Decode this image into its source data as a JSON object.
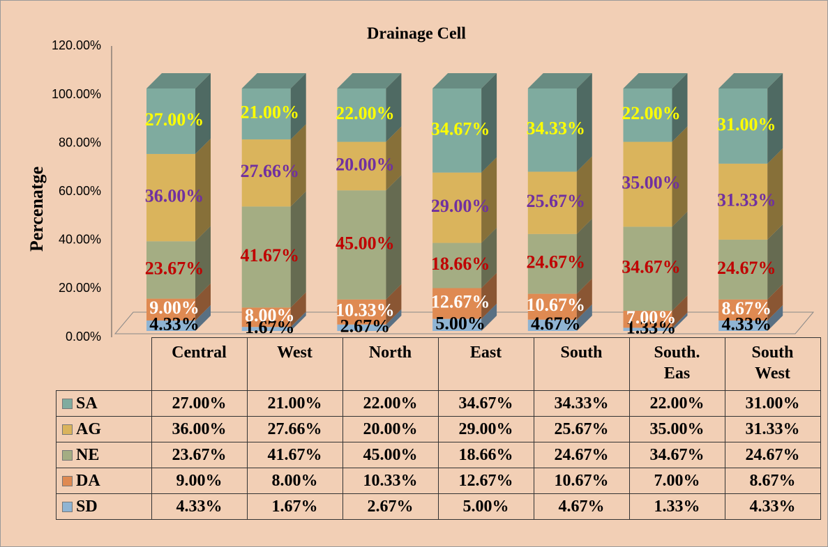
{
  "chart_data": {
    "type": "stacked_bar_3d",
    "title": "Drainage Cell",
    "y_label": "Percenatge",
    "categories": [
      "Central",
      "West",
      "North",
      "East",
      "South",
      "South. Eas",
      "South West"
    ],
    "ylim": [
      0,
      120
    ],
    "yticks": [
      {
        "value": 0,
        "label": "0.00%"
      },
      {
        "value": 20,
        "label": "20.00%"
      },
      {
        "value": 40,
        "label": "40.00%"
      },
      {
        "value": 60,
        "label": "60.00%"
      },
      {
        "value": 80,
        "label": "80.00%"
      },
      {
        "value": 100,
        "label": "100.00%"
      },
      {
        "value": 120,
        "label": "120.00%"
      }
    ],
    "series": [
      {
        "name": "SD",
        "color": "#8fb4d3",
        "label_color": "#000000",
        "values": [
          4.33,
          1.67,
          2.67,
          5.0,
          4.67,
          1.33,
          4.33
        ],
        "value_labels": [
          "4.33%",
          "1.67%",
          "2.67%",
          "5.00%",
          "4.67%",
          "1.33%",
          "4.33%"
        ]
      },
      {
        "name": "DA",
        "color": "#df8a52",
        "label_color": "#ffffff",
        "values": [
          9.0,
          8.0,
          10.33,
          12.67,
          10.67,
          7.0,
          8.67
        ],
        "value_labels": [
          "9.00%",
          "8.00%",
          "10.33%",
          "12.67%",
          "10.67%",
          "7.00%",
          "8.67%"
        ]
      },
      {
        "name": "NE",
        "color": "#a4ad83",
        "label_color": "#c00000",
        "values": [
          23.67,
          41.67,
          45.0,
          18.66,
          24.67,
          34.67,
          24.67
        ],
        "value_labels": [
          "23.67%",
          "41.67%",
          "45.00%",
          "18.66%",
          "24.67%",
          "34.67%",
          "24.67%"
        ]
      },
      {
        "name": "AG",
        "color": "#dab45c",
        "label_color": "#7030a0",
        "values": [
          36.0,
          27.66,
          20.0,
          29.0,
          25.67,
          35.0,
          31.33
        ],
        "value_labels": [
          "36.00%",
          "27.66%",
          "20.00%",
          "29.00%",
          "25.67%",
          "35.00%",
          "31.33%"
        ]
      },
      {
        "name": "SA",
        "color": "#7fab9f",
        "label_color": "#ffff00",
        "values": [
          27.0,
          21.0,
          22.0,
          34.67,
          34.33,
          22.0,
          31.0
        ],
        "value_labels": [
          "27.00%",
          "21.00%",
          "22.00%",
          "34.67%",
          "34.33%",
          "22.00%",
          "31.00%"
        ]
      }
    ]
  }
}
